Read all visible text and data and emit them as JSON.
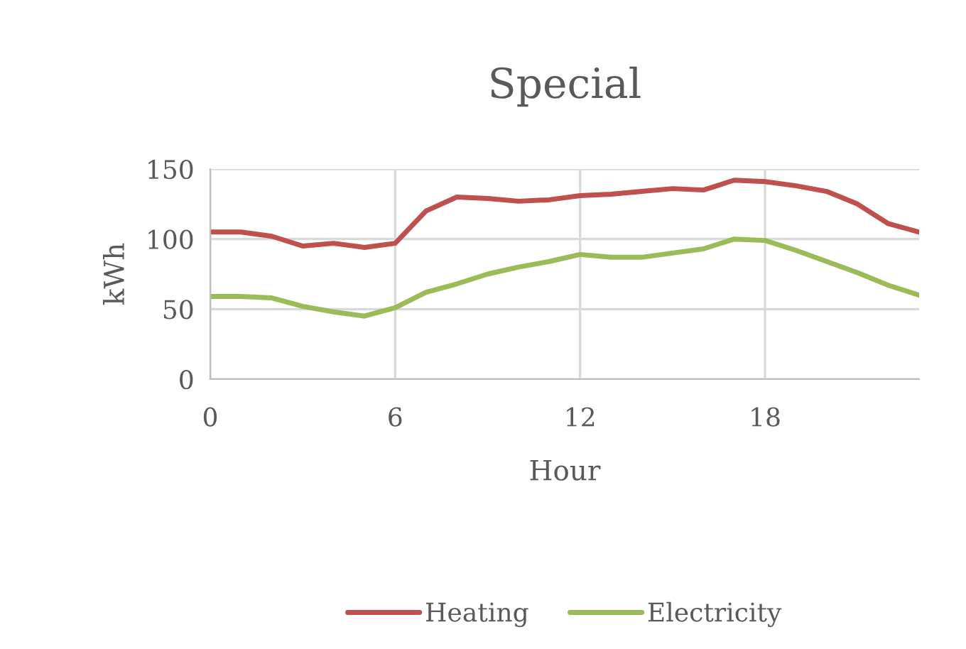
{
  "chart_data": {
    "type": "line",
    "title": "Special",
    "xlabel": "Hour",
    "ylabel": "kWh",
    "x": [
      0,
      1,
      2,
      3,
      4,
      5,
      6,
      7,
      8,
      9,
      10,
      11,
      12,
      13,
      14,
      15,
      16,
      17,
      18,
      19,
      20,
      21,
      22,
      23
    ],
    "series": [
      {
        "name": "Heating",
        "color": "#c0504d",
        "values": [
          105,
          105,
          102,
          95,
          97,
          94,
          97,
          120,
          130,
          129,
          127,
          128,
          131,
          132,
          134,
          136,
          135,
          142,
          141,
          138,
          134,
          125,
          111,
          105
        ]
      },
      {
        "name": "Electricity",
        "color": "#9bbb59",
        "values": [
          59,
          59,
          58,
          52,
          48,
          45,
          51,
          62,
          68,
          75,
          80,
          84,
          89,
          87,
          87,
          90,
          93,
          100,
          99,
          92,
          84,
          76,
          67,
          60
        ]
      }
    ],
    "xlim": [
      0,
      23
    ],
    "xticks": [
      0,
      6,
      12,
      18
    ],
    "ylim": [
      0,
      150
    ],
    "yticks": [
      0,
      50,
      100,
      150
    ],
    "grid": true,
    "legend": "bottom",
    "marker": "none",
    "line_style": "solid"
  }
}
